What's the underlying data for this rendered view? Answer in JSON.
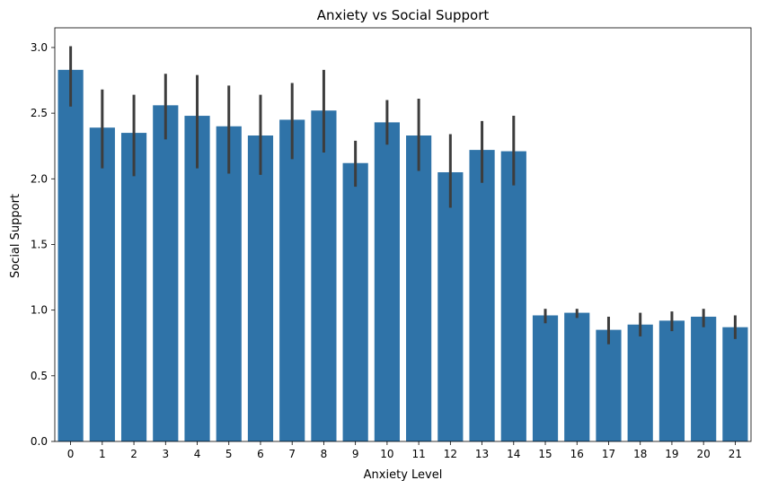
{
  "chart_data": {
    "type": "bar",
    "title": "Anxiety vs Social Support",
    "xlabel": "Anxiety Level",
    "ylabel": "Social Support",
    "categories": [
      "0",
      "1",
      "2",
      "3",
      "4",
      "5",
      "6",
      "7",
      "8",
      "9",
      "10",
      "11",
      "12",
      "13",
      "14",
      "15",
      "16",
      "17",
      "18",
      "19",
      "20",
      "21"
    ],
    "values": [
      2.83,
      2.39,
      2.35,
      2.56,
      2.48,
      2.4,
      2.33,
      2.45,
      2.52,
      2.12,
      2.43,
      2.33,
      2.05,
      2.22,
      2.21,
      0.96,
      0.98,
      0.85,
      0.89,
      0.92,
      0.95,
      0.87
    ],
    "error_low": [
      2.55,
      2.08,
      2.02,
      2.3,
      2.08,
      2.04,
      2.03,
      2.15,
      2.2,
      1.94,
      2.26,
      2.06,
      1.78,
      1.97,
      1.95,
      0.9,
      0.94,
      0.74,
      0.8,
      0.84,
      0.87,
      0.78
    ],
    "error_high": [
      3.01,
      2.68,
      2.64,
      2.8,
      2.79,
      2.71,
      2.64,
      2.73,
      2.83,
      2.29,
      2.6,
      2.61,
      2.34,
      2.44,
      2.48,
      1.01,
      1.01,
      0.95,
      0.98,
      0.99,
      1.01,
      0.96
    ],
    "ylim": [
      0,
      3.15
    ],
    "yticks": [
      "0.0",
      "0.5",
      "1.0",
      "1.5",
      "2.0",
      "2.5",
      "3.0"
    ],
    "grid": false,
    "colors": {
      "bar": "#2f73a8",
      "error_bar": "#3d3d3d",
      "axis": "#000000"
    }
  }
}
